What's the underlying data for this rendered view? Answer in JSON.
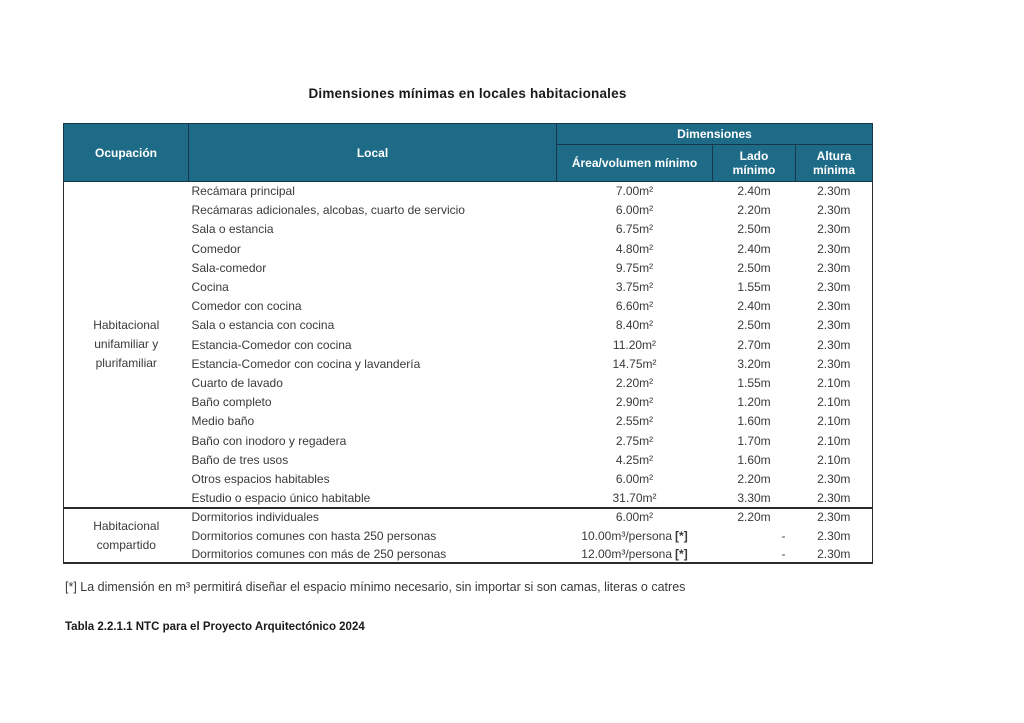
{
  "page": {
    "title": "Dimensiones mínimas en locales habitacionales",
    "footnote": "[*] La dimensión en m³ permitirá diseñar el espacio mínimo necesario, sin importar si son camas, literas o catres",
    "caption": "Tabla 2.2.1.1 NTC para el Proyecto Arquitectónico 2024"
  },
  "colors": {
    "header_bg": "#1e6b87",
    "header_border": "#16384a",
    "header_text": "#ffffff",
    "body_border": "#2b2b2b",
    "body_text": "#3a3a3a"
  },
  "table": {
    "headers": {
      "ocupacion": "Ocupación",
      "local": "Local",
      "dimensiones": "Dimensiones",
      "area": "Área/volumen mínimo",
      "lado": "Lado\nmínimo",
      "altura": "Altura\nmínima"
    },
    "groups": [
      {
        "ocupacion": "Habitacional unifamiliar y plurifamiliar",
        "rows": [
          {
            "local": "Recámara principal",
            "area": "7.00m²",
            "area_note": "",
            "lado": "2.40m",
            "altura": "2.30m"
          },
          {
            "local": "Recámaras adicionales, alcobas, cuarto de servicio",
            "area": "6.00m²",
            "area_note": "",
            "lado": "2.20m",
            "altura": "2.30m"
          },
          {
            "local": "Sala o estancia",
            "area": "6.75m²",
            "area_note": "",
            "lado": "2.50m",
            "altura": "2.30m"
          },
          {
            "local": "Comedor",
            "area": "4.80m²",
            "area_note": "",
            "lado": "2.40m",
            "altura": "2.30m"
          },
          {
            "local": "Sala-comedor",
            "area": "9.75m²",
            "area_note": "",
            "lado": "2.50m",
            "altura": "2.30m"
          },
          {
            "local": "Cocina",
            "area": "3.75m²",
            "area_note": "",
            "lado": "1.55m",
            "altura": "2.30m"
          },
          {
            "local": "Comedor con cocina",
            "area": "6.60m²",
            "area_note": "",
            "lado": "2.40m",
            "altura": "2.30m"
          },
          {
            "local": "Sala o estancia con cocina",
            "area": "8.40m²",
            "area_note": "",
            "lado": "2.50m",
            "altura": "2.30m"
          },
          {
            "local": "Estancia-Comedor con cocina",
            "area": "11.20m²",
            "area_note": "",
            "lado": "2.70m",
            "altura": "2.30m"
          },
          {
            "local": "Estancia-Comedor con cocina y lavandería",
            "area": "14.75m²",
            "area_note": "",
            "lado": "3.20m",
            "altura": "2.30m"
          },
          {
            "local": "Cuarto de lavado",
            "area": "2.20m²",
            "area_note": "",
            "lado": "1.55m",
            "altura": "2.10m"
          },
          {
            "local": "Baño completo",
            "area": "2.90m²",
            "area_note": "",
            "lado": "1.20m",
            "altura": "2.10m"
          },
          {
            "local": "Medio baño",
            "area": "2.55m²",
            "area_note": "",
            "lado": "1.60m",
            "altura": "2.10m"
          },
          {
            "local": "Baño con inodoro y regadera",
            "area": "2.75m²",
            "area_note": "",
            "lado": "1.70m",
            "altura": "2.10m"
          },
          {
            "local": "Baño de tres usos",
            "area": "4.25m²",
            "area_note": "",
            "lado": "1.60m",
            "altura": "2.10m"
          },
          {
            "local": "Otros espacios habitables",
            "area": "6.00m²",
            "area_note": "",
            "lado": "2.20m",
            "altura": "2.30m"
          },
          {
            "local": "Estudio o espacio único habitable",
            "area": "31.70m²",
            "area_note": "",
            "lado": "3.30m",
            "altura": "2.30m"
          }
        ]
      },
      {
        "ocupacion": "Habitacional compartido",
        "rows": [
          {
            "local": "Dormitorios individuales",
            "area": "6.00m²",
            "area_note": "",
            "lado": "2.20m",
            "altura": "2.30m"
          },
          {
            "local": "Dormitorios comunes con hasta 250 personas",
            "area": "10.00m³/persona",
            "area_note": "[*]",
            "lado": "-",
            "altura": "2.30m"
          },
          {
            "local": "Dormitorios comunes con más de 250 personas",
            "area": "12.00m³/persona",
            "area_note": "[*]",
            "lado": "-",
            "altura": "2.30m"
          }
        ]
      }
    ]
  }
}
